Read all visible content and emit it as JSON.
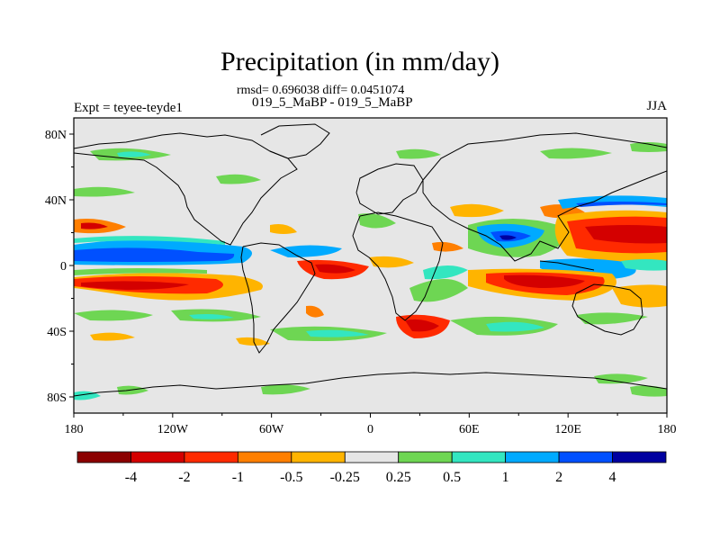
{
  "title": "Precipitation (in mm/day)",
  "stats": "rmsd= 0.696038 diff= 0.0451074",
  "subtitle": "019_5_MaBP - 019_5_MaBP",
  "left_label": "Expt = teyee-teyde1",
  "right_label": "JJA",
  "map": {
    "lat_ticks": [
      "80N",
      "40N",
      "0",
      "40S",
      "80S"
    ],
    "lon_ticks": [
      "180",
      "120W",
      "60W",
      "0",
      "60E",
      "120E",
      "180"
    ]
  },
  "colorbar": {
    "labels": [
      "-4",
      "-2",
      "-1",
      "-0.5",
      "-0.25",
      "0.25",
      "0.5",
      "1",
      "2",
      "4"
    ],
    "colors": [
      "#8b0000",
      "#d40000",
      "#ff2a00",
      "#ff7f00",
      "#ffb400",
      "#e6e6e6",
      "#6ed653",
      "#33e6c0",
      "#00aaff",
      "#0050ff",
      "#0000a0"
    ]
  },
  "colors": {
    "land_bg": "#e6e6e6",
    "coast": "#000000"
  }
}
